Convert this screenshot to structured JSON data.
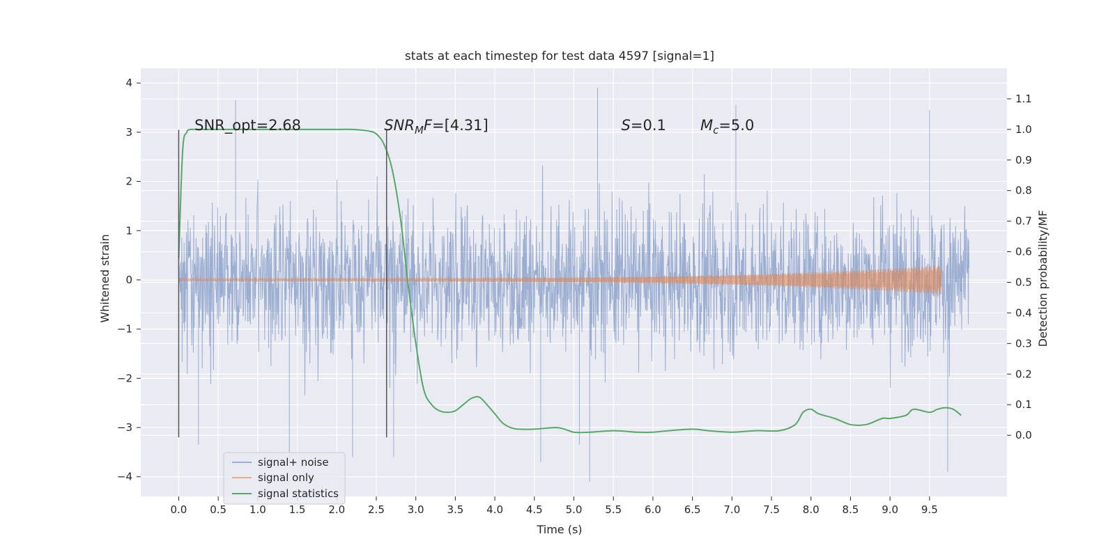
{
  "chart_data": {
    "type": "line",
    "title": "stats at each timestep for test data 4597 [signal=1]",
    "xlabel": "Time (s)",
    "ylabel_left": "Whitened strain",
    "ylabel_right": "Detection probability/MF",
    "xlim": [
      -0.48,
      10.48
    ],
    "ylim_left": [
      -4.4,
      4.3
    ],
    "ylim_right": [
      -0.2,
      1.2
    ],
    "x_ticks": [
      "0.0",
      "0.5",
      "1.0",
      "1.5",
      "2.0",
      "2.5",
      "3.0",
      "3.5",
      "4.0",
      "4.5",
      "5.0",
      "5.5",
      "6.0",
      "6.5",
      "7.0",
      "7.5",
      "8.0",
      "8.5",
      "9.0",
      "9.5"
    ],
    "y_ticks_left": [
      "−4",
      "−3",
      "−2",
      "−1",
      "0",
      "1",
      "2",
      "3",
      "4"
    ],
    "y_ticks_right": [
      "0.0",
      "0.1",
      "0.2",
      "0.3",
      "0.4",
      "0.5",
      "0.6",
      "0.7",
      "0.8",
      "0.9",
      "1.0",
      "1.1"
    ],
    "grid": true,
    "legend_placement": "lower-left",
    "legend": [
      "signal+ noise",
      "signal only",
      "signal statistics"
    ],
    "colors": {
      "signal_noise": "#4c72b0",
      "signal_only": "#dd8452",
      "signal_statistics": "#55a868",
      "axes_bg": "#eaeaf2",
      "grid": "#ffffff",
      "vline": "#555555"
    },
    "annotations": [
      {
        "x": 0.2,
        "y": 3.1,
        "parts": [
          {
            "t": "SNR_opt=2.68"
          }
        ]
      },
      {
        "x": 2.6,
        "y": 3.1,
        "parts": [
          {
            "t": "SNR",
            "i": true
          },
          {
            "t": "M",
            "i": true,
            "sub": true
          },
          {
            "t": "F",
            "i": true
          },
          {
            "t": "=[4.31]"
          }
        ]
      },
      {
        "x": 5.6,
        "y": 3.1,
        "parts": [
          {
            "t": "S",
            "i": true
          },
          {
            "t": "=0.1"
          }
        ]
      },
      {
        "x": 6.6,
        "y": 3.1,
        "parts": [
          {
            "t": "M",
            "i": true
          },
          {
            "t": "c",
            "i": true,
            "sub": true
          },
          {
            "t": "=5.0"
          }
        ]
      }
    ],
    "vertical_lines": [
      {
        "x": 0.0,
        "y_range": [
          -3.2,
          3.05
        ]
      },
      {
        "x": 2.63,
        "y_range": [
          -3.2,
          3.05
        ]
      }
    ],
    "series": [
      {
        "name": "signal+ noise",
        "axis": "left",
        "style": "noise",
        "x_range": [
          0.0,
          10.0
        ],
        "sample_rate": 204.8,
        "typical_envelope": [
          -2.6,
          2.6
        ],
        "notable_peaks": [
          [
            0.72,
            3.65
          ],
          [
            5.3,
            3.9
          ],
          [
            7.05,
            3.55
          ],
          [
            9.5,
            3.45
          ],
          [
            1.4,
            -3.7
          ],
          [
            2.2,
            -3.6
          ],
          [
            2.72,
            -3.6
          ],
          [
            4.58,
            -3.7
          ],
          [
            5.2,
            -4.1
          ],
          [
            9.73,
            -3.9
          ],
          [
            0.25,
            -3.35
          ],
          [
            5.07,
            -3.35
          ]
        ]
      },
      {
        "name": "signal only",
        "axis": "left",
        "style": "chirp",
        "x_range": [
          0.0,
          9.65
        ],
        "amplitude_start": 0.025,
        "amplitude_end": 0.3
      },
      {
        "name": "signal statistics",
        "axis": "right",
        "x": [
          0.0,
          0.05,
          0.1,
          0.15,
          0.2,
          0.3,
          0.5,
          1.0,
          1.5,
          2.0,
          2.2,
          2.4,
          2.5,
          2.6,
          2.7,
          2.8,
          2.9,
          3.0,
          3.1,
          3.2,
          3.3,
          3.4,
          3.5,
          3.6,
          3.7,
          3.8,
          3.9,
          4.0,
          4.1,
          4.2,
          4.3,
          4.5,
          4.8,
          5.0,
          5.2,
          5.5,
          5.8,
          6.0,
          6.2,
          6.5,
          6.7,
          7.0,
          7.3,
          7.6,
          7.8,
          7.9,
          8.0,
          8.1,
          8.3,
          8.5,
          8.7,
          8.9,
          9.0,
          9.2,
          9.3,
          9.5,
          9.6,
          9.7,
          9.8,
          9.9
        ],
        "values": [
          0.58,
          0.93,
          0.99,
          1.0,
          1.0,
          1.0,
          1.0,
          1.0,
          1.0,
          1.0,
          1.0,
          0.995,
          0.985,
          0.95,
          0.87,
          0.72,
          0.5,
          0.3,
          0.15,
          0.1,
          0.08,
          0.075,
          0.08,
          0.1,
          0.12,
          0.125,
          0.1,
          0.07,
          0.04,
          0.025,
          0.02,
          0.02,
          0.025,
          0.01,
          0.01,
          0.015,
          0.01,
          0.01,
          0.015,
          0.02,
          0.015,
          0.01,
          0.015,
          0.015,
          0.035,
          0.075,
          0.085,
          0.07,
          0.055,
          0.035,
          0.035,
          0.055,
          0.055,
          0.065,
          0.085,
          0.075,
          0.085,
          0.09,
          0.085,
          0.065
        ]
      }
    ]
  }
}
